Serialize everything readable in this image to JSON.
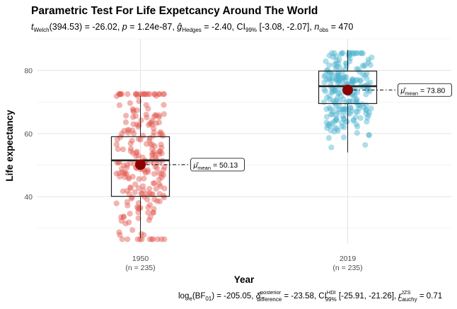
{
  "chart_data": {
    "type": "scatter",
    "title": "Parametric Test For Life Expetcancy Around The World",
    "subtitle": {
      "t_welch": "(394.53) = -26.02, ",
      "p": " = 1.24e-87, ",
      "g_hedges": " = -2.40, CI",
      "ci_level": "99%",
      "ci_range": " [-3.08, -2.07], ",
      "n_obs": " = 470"
    },
    "xlabel": "Year",
    "ylabel": "Life expectancy",
    "ylim": [
      25,
      90
    ],
    "yticks": [
      "40",
      "60",
      "80"
    ],
    "categories": [
      "1950",
      "2019"
    ],
    "counts": [
      "(n = 235)",
      "(n = 235)"
    ],
    "groups": [
      {
        "name": "1950",
        "color": "#e2594f",
        "n": 235,
        "mean": 50.13,
        "mean_label": "50.13",
        "box": {
          "q1": 40.1,
          "median": 51.5,
          "q3": 59.0,
          "whisker_low": 26.8,
          "whisker_high": 72.0
        },
        "y_min": 26.5,
        "y_max": 72.5
      },
      {
        "name": "2019",
        "color": "#4fb3d1",
        "n": 235,
        "mean": 73.8,
        "mean_label": "73.80",
        "box": {
          "q1": 69.5,
          "median": 75.0,
          "q3": 79.8,
          "whisker_low": 54.0,
          "whisker_high": 86.5
        },
        "y_min": 53.5,
        "y_max": 85.5
      }
    ],
    "mean_color": "#8b0000",
    "caption": {
      "bf": "(BF",
      "bf_value": ") = -205.05, ",
      "delta_value": " = -23.58, CI",
      "ci_hdi_value": " [-25.91, -21.26], ",
      "r_value": " = 0.71"
    }
  }
}
